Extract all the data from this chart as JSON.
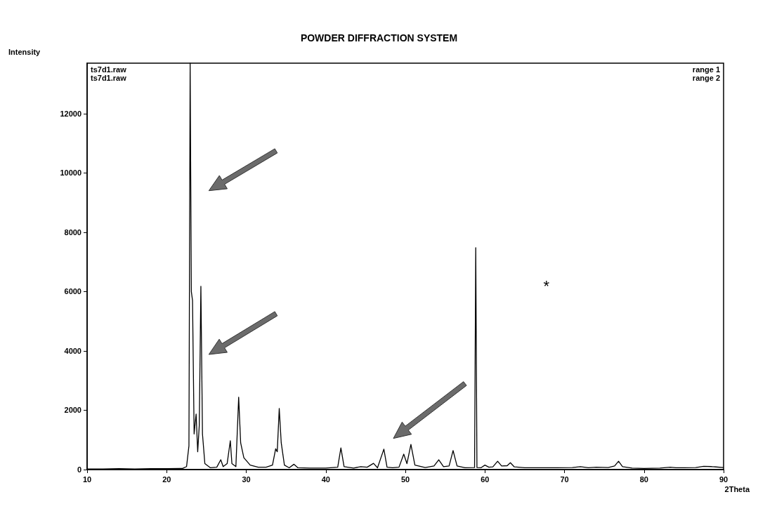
{
  "chart_data": {
    "type": "line",
    "title": "POWDER DIFFRACTION SYSTEM",
    "xlabel": "2Theta",
    "ylabel": "Intensity",
    "xlim": [
      10,
      90
    ],
    "xticks": [
      10,
      20,
      30,
      40,
      50,
      60,
      70,
      80,
      90
    ],
    "ylim": [
      0,
      13700
    ],
    "yticks": [
      0,
      2000,
      4000,
      6000,
      8000,
      10000,
      12000
    ],
    "grid": false,
    "marker": "none",
    "line_style": "solid",
    "annotations": [
      "ts7d1.raw",
      "ts7d1.raw",
      "range 1",
      "range 2",
      "*"
    ],
    "series": [
      {
        "color": "#000000",
        "x": [
          10,
          12,
          14,
          16,
          18,
          20,
          22,
          22.5,
          22.8,
          22.95,
          23.1,
          23.25,
          23.45,
          23.7,
          23.9,
          24.1,
          24.3,
          24.5,
          24.8,
          25.5,
          26.3,
          26.8,
          27.1,
          27.6,
          28.0,
          28.2,
          28.7,
          29.05,
          29.3,
          29.7,
          30.5,
          31.5,
          32.5,
          33.3,
          33.7,
          33.9,
          34.15,
          34.4,
          34.8,
          35.4,
          36.0,
          36.5,
          38,
          40,
          41.5,
          41.9,
          42.3,
          43.5,
          44.4,
          45.2,
          46.0,
          46.5,
          47.3,
          47.7,
          48.4,
          49.2,
          49.8,
          50.2,
          50.7,
          51.2,
          52.5,
          53.6,
          54.2,
          54.8,
          55.5,
          56.0,
          56.5,
          57.5,
          58.7,
          58.85,
          59.0,
          59.5,
          60.0,
          60.5,
          61.0,
          61.6,
          62.1,
          62.8,
          63.2,
          63.7,
          65,
          67,
          69,
          71,
          72,
          73,
          74,
          75.5,
          76.3,
          76.8,
          77.3,
          78.5,
          80,
          82,
          83.3,
          84,
          85,
          86.5,
          87.5,
          88.5,
          90
        ],
        "values": [
          20,
          20,
          30,
          20,
          30,
          30,
          40,
          100,
          800,
          13700,
          6000,
          5700,
          1200,
          1870,
          600,
          1500,
          6180,
          1200,
          200,
          60,
          80,
          330,
          100,
          200,
          970,
          200,
          100,
          2440,
          900,
          400,
          150,
          80,
          80,
          150,
          700,
          600,
          2060,
          900,
          150,
          60,
          180,
          60,
          50,
          50,
          80,
          730,
          100,
          50,
          100,
          80,
          210,
          60,
          690,
          80,
          60,
          80,
          520,
          200,
          850,
          150,
          70,
          120,
          330,
          100,
          120,
          640,
          120,
          60,
          70,
          7480,
          70,
          60,
          150,
          80,
          90,
          280,
          120,
          130,
          230,
          90,
          60,
          60,
          60,
          70,
          100,
          60,
          80,
          70,
          120,
          280,
          100,
          50,
          40,
          50,
          80,
          60,
          60,
          70,
          110,
          100,
          70
        ]
      }
    ]
  }
}
